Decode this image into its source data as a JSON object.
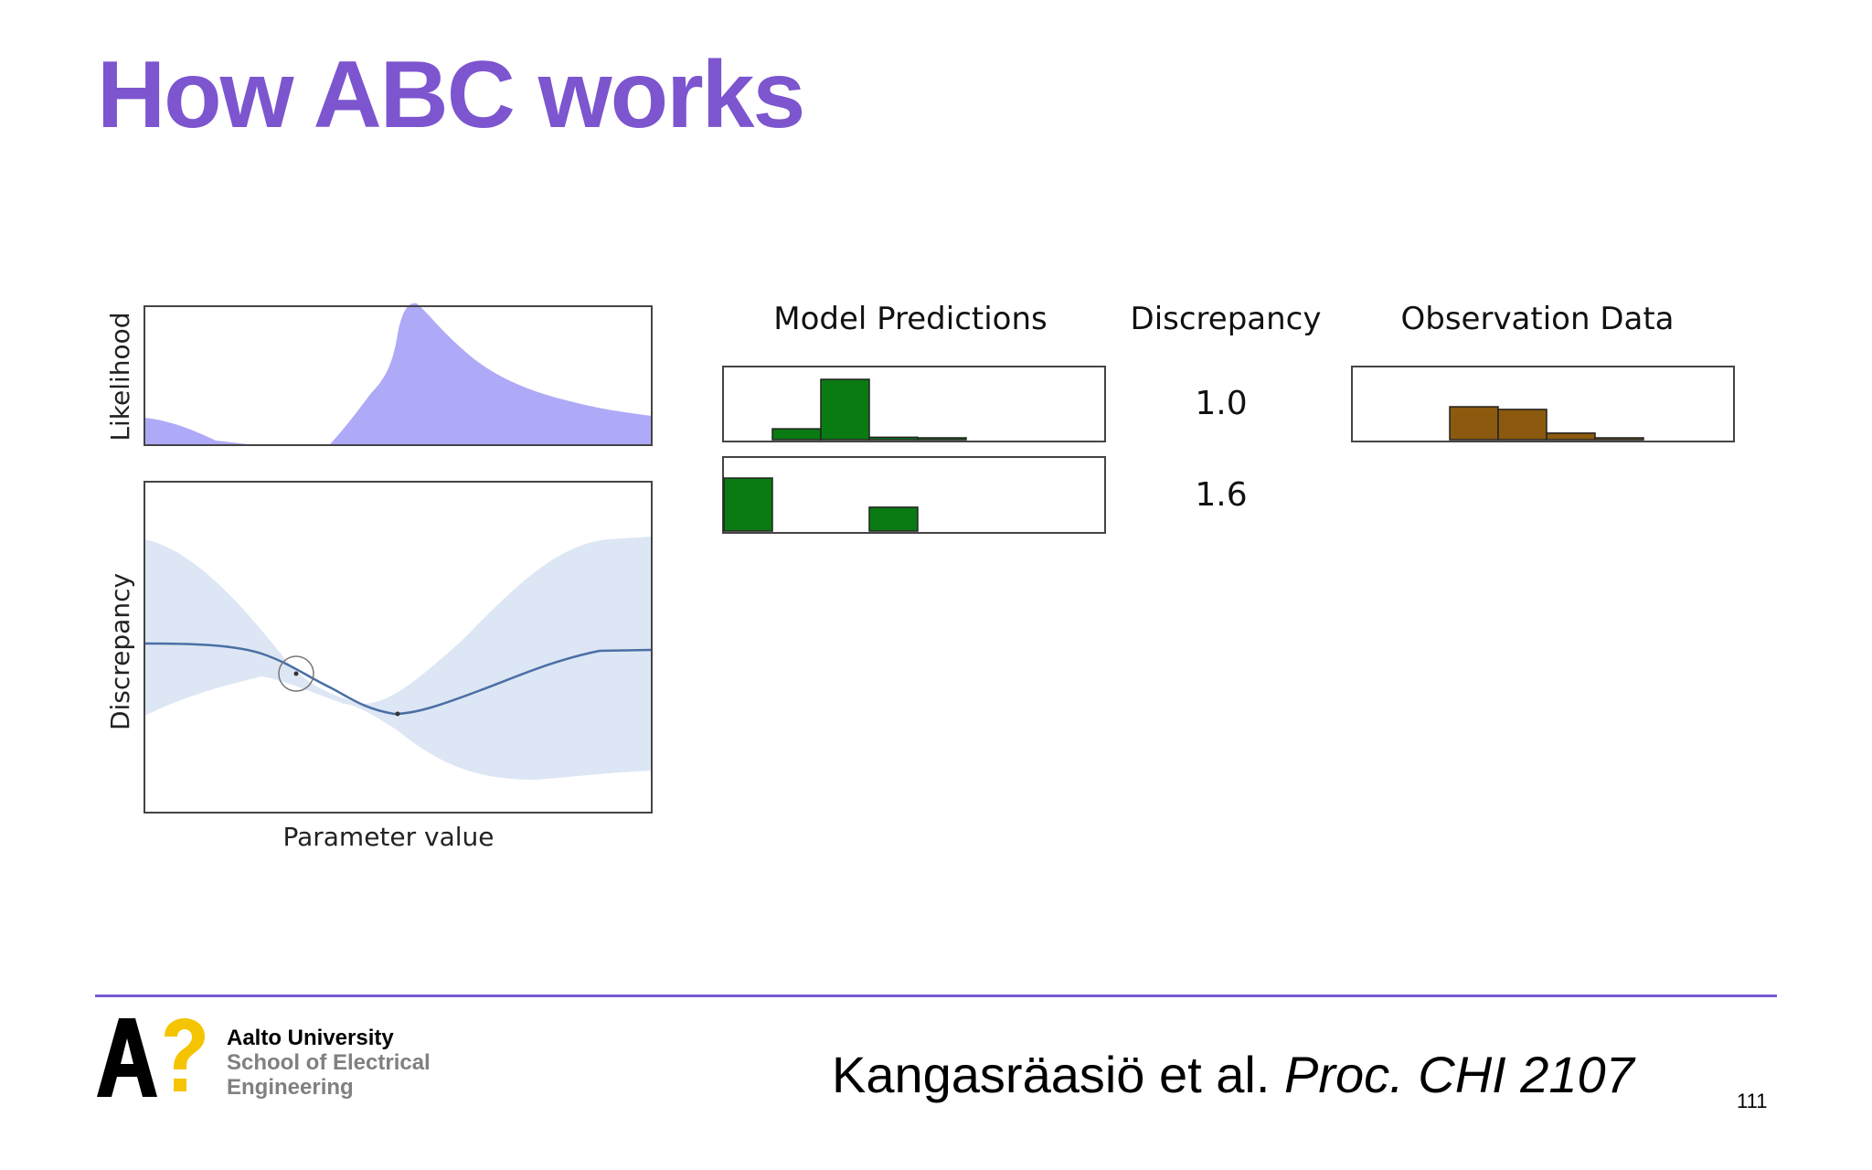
{
  "slide": {
    "title": "How ABC works",
    "page_number": "111"
  },
  "figure": {
    "likelihood_axis_label": "Likelihood",
    "discrepancy_axis_label": "Discrepancy",
    "parameter_axis_label": "Parameter value",
    "columns": {
      "model_predictions": "Model Predictions",
      "discrepancy": "Discrepancy",
      "observation_data": "Observation Data"
    },
    "rows": [
      {
        "discrepancy_value": "1.0",
        "histogram": [
          0.0,
          0.18,
          1.0,
          0.04,
          0.02,
          0.0,
          0.0,
          0.0
        ]
      },
      {
        "discrepancy_value": "1.6",
        "histogram": [
          1.0,
          0.0,
          0.0,
          0.45,
          0.0,
          0.0,
          0.0,
          0.0
        ]
      }
    ],
    "observation_histogram": [
      0.0,
      0.0,
      1.0,
      0.92,
      0.2,
      0.04,
      0.0,
      0.0
    ],
    "colors": {
      "likelihood_fill": "#aeaaf7",
      "gp_band": "#dde6f4",
      "gp_mean": "#4a6fa5",
      "prediction_bar": "#0a7a12",
      "observation_bar": "#8b5a0e",
      "title": "#7c55cf"
    }
  },
  "footer": {
    "university_line1": "Aalto University",
    "university_line2": "School of Electrical",
    "university_line3": "Engineering",
    "citation_authors": "Kangasräasiö et al. ",
    "citation_journal": "Proc. CHI 2107"
  }
}
